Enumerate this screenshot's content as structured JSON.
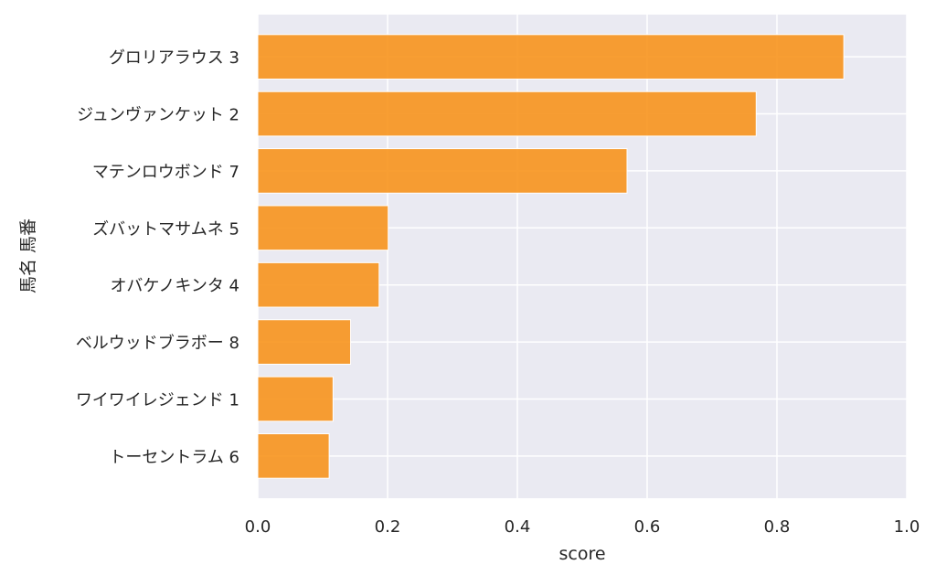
{
  "chart_data": {
    "type": "bar",
    "orientation": "horizontal",
    "categories": [
      "グロリアラウス 3",
      "ジュンヴァンケット 2",
      "マテンロウボンド 7",
      "ズバットマサムネ 5",
      "オバケノキンタ 4",
      "ベルウッドブラボー 8",
      "ワイワイレジェンド 1",
      "トーセントラム 6"
    ],
    "values": [
      0.903,
      0.768,
      0.569,
      0.201,
      0.187,
      0.143,
      0.116,
      0.11
    ],
    "xlabel": "score",
    "ylabel": "馬名 馬番",
    "xlim": [
      0,
      1.0
    ],
    "xticks": [
      "0.0",
      "0.2",
      "0.4",
      "0.6",
      "0.8",
      "1.0"
    ],
    "xtick_values": [
      0,
      0.2,
      0.4,
      0.6,
      0.8,
      1.0
    ],
    "grid": true,
    "colors": {
      "bar": "#f7941d",
      "plot_background": "#eaeaf2",
      "grid": "#ffffff",
      "text": "#262626"
    }
  }
}
